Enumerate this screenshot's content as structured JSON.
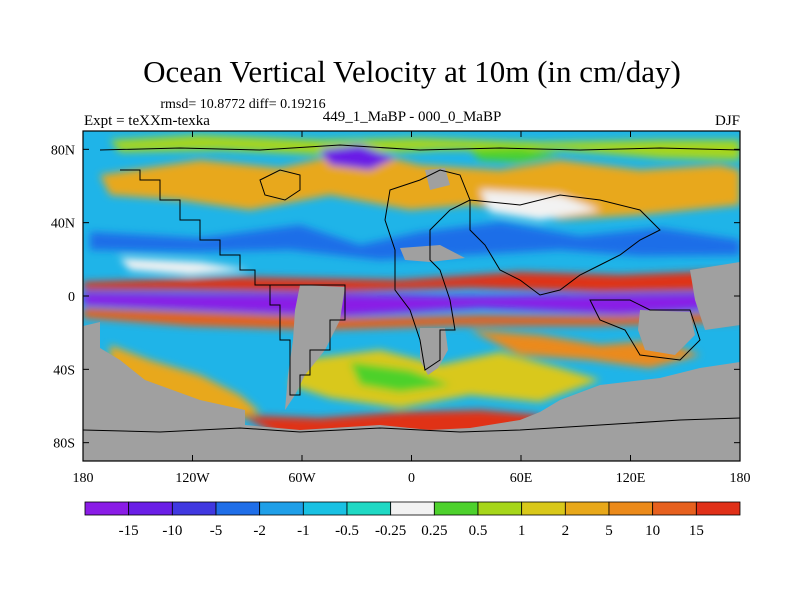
{
  "chart_data": {
    "type": "heatmap",
    "title": "Ocean Vertical Velocity at 10m (in cm/day)",
    "stats": "rmsd= 10.8772 diff= 0.19216",
    "left_label": "Expt = teXXm-texka",
    "center_label": "449_1_MaBP - 000_0_MaBP",
    "right_label": "DJF",
    "x_ticks": [
      {
        "lon": -180,
        "label": "180"
      },
      {
        "lon": -120,
        "label": "120W"
      },
      {
        "lon": -60,
        "label": "60W"
      },
      {
        "lon": 0,
        "label": "0"
      },
      {
        "lon": 60,
        "label": "60E"
      },
      {
        "lon": 120,
        "label": "120E"
      },
      {
        "lon": 180,
        "label": "180"
      }
    ],
    "y_ticks": [
      {
        "lat": 80,
        "label": "80N"
      },
      {
        "lat": 40,
        "label": "40N"
      },
      {
        "lat": 0,
        "label": "0"
      },
      {
        "lat": -40,
        "label": "40S"
      },
      {
        "lat": -80,
        "label": "80S"
      }
    ],
    "xlim": [
      -180,
      180
    ],
    "ylim": [
      -90,
      90
    ],
    "colorbar": {
      "levels": [
        "-15",
        "-10",
        "-5",
        "-2",
        "-1",
        "-0.5",
        "-0.25",
        "0.25",
        "0.5",
        "1",
        "2",
        "5",
        "10",
        "15"
      ],
      "colors": [
        "#8a1ce6",
        "#6a1ee6",
        "#4038e0",
        "#1f6ee8",
        "#1f9fe8",
        "#19c1e3",
        "#1fd9c4",
        "#f2f2f2",
        "#4dd12c",
        "#a6d61a",
        "#d9c81a",
        "#e8a81a",
        "#eb8a1a",
        "#e6601e",
        "#e03018"
      ]
    },
    "land_color": "#a0a0a0"
  }
}
